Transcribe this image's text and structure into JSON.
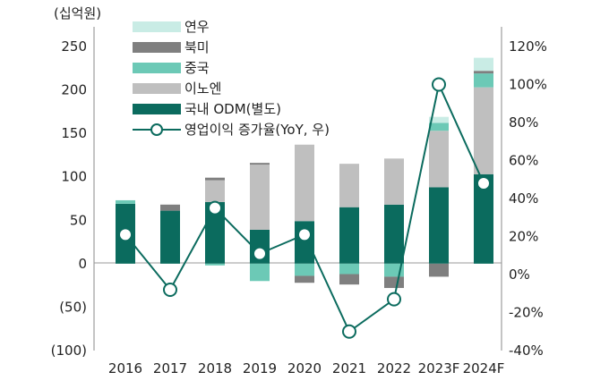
{
  "chart_data": {
    "type": "bar",
    "subtype": "stacked bar with line on secondary axis",
    "unit_label": "(십억원)",
    "categories": [
      "2016",
      "2017",
      "2018",
      "2019",
      "2020",
      "2021",
      "2022",
      "2023F",
      "2024F"
    ],
    "y_left": {
      "ylim": [
        -100,
        250
      ],
      "ticks": [
        250,
        200,
        150,
        100,
        50,
        0,
        -50,
        -100
      ],
      "tick_labels": [
        "250",
        "200",
        "150",
        "100",
        "50",
        "0",
        "(50)",
        "(100)"
      ]
    },
    "y_right": {
      "ylim": [
        -40,
        120
      ],
      "ticks": [
        120,
        100,
        80,
        60,
        40,
        20,
        0,
        -20,
        -40
      ],
      "tick_labels": [
        "120%",
        "100%",
        "80%",
        "60%",
        "40%",
        "20%",
        "0%",
        "-20%",
        "-40%"
      ]
    },
    "grid": false,
    "legend_position": "top-left",
    "series": [
      {
        "name": "국내 ODM(별도)",
        "color": "#0b6b5e",
        "type": "bar",
        "values": [
          69,
          61,
          71,
          39,
          49,
          65,
          68,
          88,
          103
        ]
      },
      {
        "name": "이노엔",
        "color": "#bfbfbf",
        "type": "bar",
        "values": [
          0,
          0,
          25,
          75,
          88,
          50,
          53,
          65,
          100
        ]
      },
      {
        "name": "중국",
        "color": "#6cc9b6",
        "type": "bar",
        "values": [
          4,
          0,
          -2,
          -20,
          -14,
          -12,
          -15,
          9,
          16
        ]
      },
      {
        "name": "북미",
        "color": "#7f7f7f",
        "type": "bar",
        "values": [
          0,
          7,
          3,
          2,
          -8,
          -12,
          -13,
          -15,
          3
        ]
      },
      {
        "name": "연우",
        "color": "#c9ece5",
        "type": "bar",
        "values": [
          0,
          0,
          0,
          0,
          0,
          0,
          0,
          7,
          15
        ]
      },
      {
        "name": "영업이익 증가율(YoY, 우)",
        "color": "#0b6b5e",
        "type": "line",
        "axis": "right",
        "values": [
          21,
          -8,
          35,
          11,
          21,
          -30,
          -13,
          100,
          48
        ]
      }
    ]
  }
}
